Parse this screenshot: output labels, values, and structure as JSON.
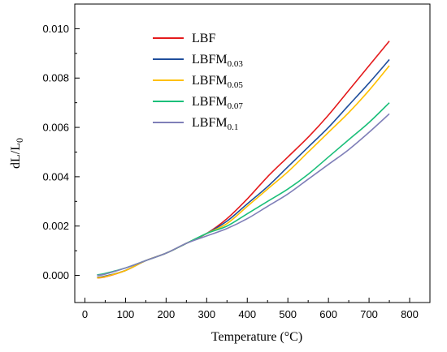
{
  "chart_data": {
    "type": "line",
    "xlabel": "Temperature (°C)",
    "ylabel": {
      "main": "dL/L",
      "sub": "0"
    },
    "xlim": [
      -25,
      850
    ],
    "ylim": [
      -0.0011,
      0.011
    ],
    "x_ticks": [
      0,
      100,
      200,
      300,
      400,
      500,
      600,
      700,
      800
    ],
    "y_ticks": [
      0.0,
      0.002,
      0.004,
      0.006,
      0.008,
      0.01
    ],
    "x_tick_labels": [
      "0",
      "100",
      "200",
      "300",
      "400",
      "500",
      "600",
      "700",
      "800"
    ],
    "y_tick_labels": [
      "0.000",
      "0.002",
      "0.004",
      "0.006",
      "0.008",
      "0.010"
    ],
    "grid": false,
    "legend_position": "top-left",
    "series": [
      {
        "name": "LBF",
        "sub": "",
        "color": "#e41a1c",
        "x": [
          30,
          50,
          100,
          150,
          200,
          250,
          300,
          350,
          400,
          450,
          500,
          550,
          600,
          650,
          700,
          750
        ],
        "y": [
          -0.0001,
          -6e-05,
          0.0002,
          0.0006,
          0.0009,
          0.0013,
          0.0017,
          0.0023,
          0.0031,
          0.004,
          0.0048,
          0.0056,
          0.0065,
          0.0075,
          0.0085,
          0.0095
        ]
      },
      {
        "name": "LBFM",
        "sub": "0.03",
        "color": "#1f4e9c",
        "x": [
          30,
          50,
          100,
          150,
          200,
          250,
          300,
          350,
          400,
          450,
          500,
          550,
          600,
          650,
          700,
          750
        ],
        "y": [
          -8e-05,
          -3e-05,
          0.0002,
          0.0006,
          0.0009,
          0.0013,
          0.0017,
          0.0022,
          0.0029,
          0.0036,
          0.0044,
          0.0052,
          0.006,
          0.0069,
          0.0078,
          0.00875
        ]
      },
      {
        "name": "LBFM",
        "sub": "0.05",
        "color": "#ffc000",
        "x": [
          30,
          50,
          100,
          150,
          200,
          250,
          300,
          350,
          400,
          450,
          500,
          550,
          600,
          650,
          700,
          750
        ],
        "y": [
          -0.0001,
          -5e-05,
          0.0002,
          0.0006,
          0.0009,
          0.0013,
          0.0017,
          0.0021,
          0.0028,
          0.0035,
          0.0042,
          0.005,
          0.0058,
          0.0066,
          0.0075,
          0.0085
        ]
      },
      {
        "name": "LBFM",
        "sub": "0.07",
        "color": "#1bbf7a",
        "x": [
          30,
          50,
          100,
          150,
          200,
          250,
          300,
          350,
          400,
          450,
          500,
          550,
          600,
          650,
          700,
          750
        ],
        "y": [
          2e-05,
          8e-05,
          0.0003,
          0.0006,
          0.0009,
          0.0013,
          0.0017,
          0.002,
          0.0025,
          0.003,
          0.0035,
          0.0041,
          0.0048,
          0.0055,
          0.0062,
          0.007
        ]
      },
      {
        "name": "LBFM",
        "sub": "0.1",
        "color": "#7f7fb8",
        "x": [
          30,
          50,
          100,
          150,
          200,
          250,
          300,
          350,
          400,
          450,
          500,
          550,
          600,
          650,
          700,
          750
        ],
        "y": [
          0.0,
          5e-05,
          0.0003,
          0.0006,
          0.0009,
          0.0013,
          0.0016,
          0.0019,
          0.0023,
          0.0028,
          0.0033,
          0.0039,
          0.0045,
          0.0051,
          0.0058,
          0.00655
        ]
      }
    ]
  }
}
